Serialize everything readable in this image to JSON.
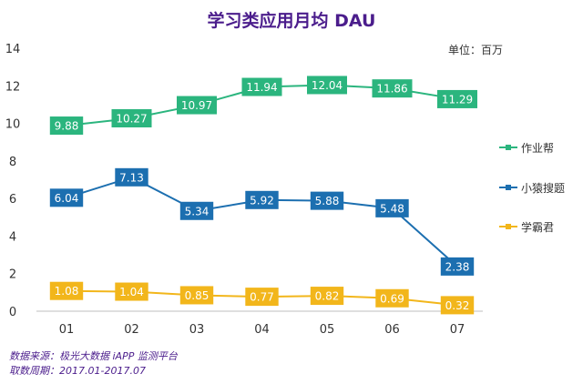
{
  "chart_data": {
    "type": "line",
    "title": "学习类应用月均 DAU",
    "unit_label": "单位：百万",
    "categories": [
      "01",
      "02",
      "03",
      "04",
      "05",
      "06",
      "07"
    ],
    "ylim": [
      0,
      14
    ],
    "yticks": [
      0,
      2,
      4,
      6,
      8,
      10,
      12,
      14
    ],
    "xlabel": "",
    "ylabel": "",
    "legend_position": "right",
    "series": [
      {
        "name": "作业帮",
        "color": "#2bb57e",
        "values": [
          9.88,
          10.27,
          10.97,
          11.94,
          12.04,
          11.86,
          11.29
        ]
      },
      {
        "name": "小猿搜题",
        "color": "#1c6fb0",
        "values": [
          6.04,
          7.13,
          5.34,
          5.92,
          5.88,
          5.48,
          2.38
        ]
      },
      {
        "name": "学霸君",
        "color": "#f2b61b",
        "values": [
          1.08,
          1.04,
          0.85,
          0.77,
          0.82,
          0.69,
          0.32
        ]
      }
    ]
  },
  "source": {
    "line1": "数据来源：极光大数据 iAPP 监测平台",
    "line2": "取数周期：2017.01-2017.07"
  }
}
